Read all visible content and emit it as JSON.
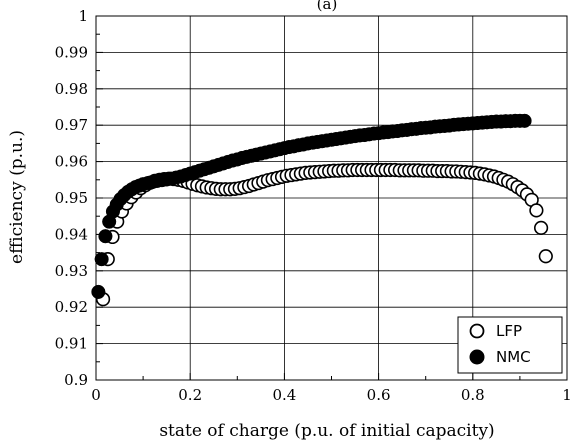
{
  "chart_data": {
    "type": "scatter",
    "title": "",
    "panel_label": "(a)",
    "xlabel": "state of charge (p.u. of initial capacity)",
    "ylabel": "efficiency (p.u.)",
    "xlim": [
      0,
      1
    ],
    "ylim": [
      0.9,
      1
    ],
    "xticks": [
      0,
      0.2,
      0.4,
      0.6,
      0.8,
      1
    ],
    "xtick_labels": [
      "0",
      "0.2",
      "0.4",
      "0.6",
      "0.8",
      "1"
    ],
    "yticks": [
      0.9,
      0.91,
      0.92,
      0.93,
      0.94,
      0.95,
      0.96,
      0.97,
      0.98,
      0.99,
      1
    ],
    "ytick_labels": [
      "0.9",
      "0.91",
      "0.92",
      "0.93",
      "0.94",
      "0.95",
      "0.96",
      "0.97",
      "0.98",
      "0.99",
      "1"
    ],
    "grid": true,
    "legend_position": "bottom-right",
    "series": [
      {
        "name": "LFP",
        "marker": "open-circle",
        "color": "#000000",
        "points": [
          [
            0.015,
            0.9222
          ],
          [
            0.025,
            0.9332
          ],
          [
            0.035,
            0.9393
          ],
          [
            0.045,
            0.9435
          ],
          [
            0.055,
            0.9463
          ],
          [
            0.065,
            0.9485
          ],
          [
            0.075,
            0.9502
          ],
          [
            0.085,
            0.9515
          ],
          [
            0.095,
            0.9527
          ],
          [
            0.105,
            0.9535
          ],
          [
            0.115,
            0.9542
          ],
          [
            0.125,
            0.9547
          ],
          [
            0.135,
            0.955
          ],
          [
            0.145,
            0.9552
          ],
          [
            0.155,
            0.9553
          ],
          [
            0.165,
            0.9552
          ],
          [
            0.175,
            0.955
          ],
          [
            0.185,
            0.9547
          ],
          [
            0.195,
            0.9543
          ],
          [
            0.205,
            0.9539
          ],
          [
            0.215,
            0.9535
          ],
          [
            0.225,
            0.9532
          ],
          [
            0.235,
            0.9529
          ],
          [
            0.245,
            0.9527
          ],
          [
            0.255,
            0.9525
          ],
          [
            0.265,
            0.9524
          ],
          [
            0.275,
            0.9524
          ],
          [
            0.285,
            0.9524
          ],
          [
            0.295,
            0.9525
          ],
          [
            0.305,
            0.9527
          ],
          [
            0.315,
            0.953
          ],
          [
            0.325,
            0.9533
          ],
          [
            0.335,
            0.9537
          ],
          [
            0.345,
            0.9541
          ],
          [
            0.355,
            0.9545
          ],
          [
            0.365,
            0.9549
          ],
          [
            0.375,
            0.9552
          ],
          [
            0.385,
            0.9555
          ],
          [
            0.395,
            0.9558
          ],
          [
            0.405,
            0.9561
          ],
          [
            0.415,
            0.9563
          ],
          [
            0.425,
            0.9565
          ],
          [
            0.435,
            0.9567
          ],
          [
            0.445,
            0.9569
          ],
          [
            0.455,
            0.957
          ],
          [
            0.465,
            0.9571
          ],
          [
            0.475,
            0.9572
          ],
          [
            0.485,
            0.9573
          ],
          [
            0.495,
            0.9574
          ],
          [
            0.505,
            0.9575
          ],
          [
            0.515,
            0.9575
          ],
          [
            0.525,
            0.9576
          ],
          [
            0.535,
            0.9576
          ],
          [
            0.545,
            0.9577
          ],
          [
            0.555,
            0.9577
          ],
          [
            0.565,
            0.9577
          ],
          [
            0.575,
            0.9577
          ],
          [
            0.585,
            0.9577
          ],
          [
            0.595,
            0.9577
          ],
          [
            0.605,
            0.9577
          ],
          [
            0.615,
            0.9577
          ],
          [
            0.625,
            0.9577
          ],
          [
            0.635,
            0.9577
          ],
          [
            0.645,
            0.9576
          ],
          [
            0.655,
            0.9576
          ],
          [
            0.665,
            0.9576
          ],
          [
            0.675,
            0.9576
          ],
          [
            0.685,
            0.9576
          ],
          [
            0.695,
            0.9575
          ],
          [
            0.705,
            0.9575
          ],
          [
            0.715,
            0.9575
          ],
          [
            0.725,
            0.9574
          ],
          [
            0.735,
            0.9574
          ],
          [
            0.745,
            0.9574
          ],
          [
            0.755,
            0.9573
          ],
          [
            0.765,
            0.9573
          ],
          [
            0.775,
            0.9572
          ],
          [
            0.785,
            0.9571
          ],
          [
            0.795,
            0.957
          ],
          [
            0.805,
            0.9569
          ],
          [
            0.815,
            0.9567
          ],
          [
            0.825,
            0.9565
          ],
          [
            0.835,
            0.9562
          ],
          [
            0.845,
            0.9559
          ],
          [
            0.855,
            0.9555
          ],
          [
            0.865,
            0.955
          ],
          [
            0.875,
            0.9545
          ],
          [
            0.885,
            0.9538
          ],
          [
            0.895,
            0.953
          ],
          [
            0.905,
            0.9521
          ],
          [
            0.915,
            0.951
          ],
          [
            0.925,
            0.9495
          ],
          [
            0.935,
            0.9466
          ],
          [
            0.945,
            0.9418
          ],
          [
            0.955,
            0.934
          ]
        ]
      },
      {
        "name": "NMC",
        "marker": "filled-circle",
        "color": "#000000",
        "points": [
          [
            0.005,
            0.9242
          ],
          [
            0.012,
            0.9332
          ],
          [
            0.02,
            0.9395
          ],
          [
            0.028,
            0.9435
          ],
          [
            0.036,
            0.9463
          ],
          [
            0.044,
            0.9482
          ],
          [
            0.052,
            0.9497
          ],
          [
            0.06,
            0.9508
          ],
          [
            0.068,
            0.9517
          ],
          [
            0.076,
            0.9524
          ],
          [
            0.084,
            0.953
          ],
          [
            0.092,
            0.9534
          ],
          [
            0.1,
            0.9538
          ],
          [
            0.11,
            0.9541
          ],
          [
            0.12,
            0.9544
          ],
          [
            0.13,
            0.9547
          ],
          [
            0.14,
            0.9549
          ],
          [
            0.15,
            0.9551
          ],
          [
            0.16,
            0.9553
          ],
          [
            0.17,
            0.9556
          ],
          [
            0.18,
            0.9559
          ],
          [
            0.19,
            0.9563
          ],
          [
            0.2,
            0.9567
          ],
          [
            0.21,
            0.9571
          ],
          [
            0.22,
            0.9575
          ],
          [
            0.23,
            0.9579
          ],
          [
            0.24,
            0.9583
          ],
          [
            0.25,
            0.9587
          ],
          [
            0.26,
            0.9591
          ],
          [
            0.27,
            0.9595
          ],
          [
            0.28,
            0.9599
          ],
          [
            0.29,
            0.9603
          ],
          [
            0.3,
            0.9606
          ],
          [
            0.31,
            0.961
          ],
          [
            0.32,
            0.9613
          ],
          [
            0.33,
            0.9616
          ],
          [
            0.34,
            0.9619
          ],
          [
            0.35,
            0.9622
          ],
          [
            0.36,
            0.9625
          ],
          [
            0.37,
            0.9628
          ],
          [
            0.38,
            0.9631
          ],
          [
            0.39,
            0.9634
          ],
          [
            0.4,
            0.9637
          ],
          [
            0.41,
            0.964
          ],
          [
            0.42,
            0.9642
          ],
          [
            0.43,
            0.9645
          ],
          [
            0.44,
            0.9647
          ],
          [
            0.45,
            0.965
          ],
          [
            0.46,
            0.9652
          ],
          [
            0.47,
            0.9654
          ],
          [
            0.48,
            0.9656
          ],
          [
            0.49,
            0.9658
          ],
          [
            0.5,
            0.966
          ],
          [
            0.51,
            0.9662
          ],
          [
            0.52,
            0.9664
          ],
          [
            0.53,
            0.9666
          ],
          [
            0.54,
            0.9668
          ],
          [
            0.55,
            0.967
          ],
          [
            0.56,
            0.9672
          ],
          [
            0.57,
            0.9673
          ],
          [
            0.58,
            0.9675
          ],
          [
            0.59,
            0.9677
          ],
          [
            0.6,
            0.9678
          ],
          [
            0.61,
            0.968
          ],
          [
            0.62,
            0.9681
          ],
          [
            0.63,
            0.9683
          ],
          [
            0.64,
            0.9684
          ],
          [
            0.65,
            0.9686
          ],
          [
            0.66,
            0.9687
          ],
          [
            0.67,
            0.9689
          ],
          [
            0.68,
            0.969
          ],
          [
            0.69,
            0.9692
          ],
          [
            0.7,
            0.9693
          ],
          [
            0.71,
            0.9694
          ],
          [
            0.72,
            0.9696
          ],
          [
            0.73,
            0.9697
          ],
          [
            0.74,
            0.9698
          ],
          [
            0.75,
            0.9699
          ],
          [
            0.76,
            0.9701
          ],
          [
            0.77,
            0.9702
          ],
          [
            0.78,
            0.9703
          ],
          [
            0.79,
            0.9704
          ],
          [
            0.8,
            0.9705
          ],
          [
            0.81,
            0.9706
          ],
          [
            0.82,
            0.9707
          ],
          [
            0.83,
            0.9708
          ],
          [
            0.84,
            0.9709
          ],
          [
            0.85,
            0.971
          ],
          [
            0.86,
            0.971
          ],
          [
            0.87,
            0.9711
          ],
          [
            0.88,
            0.9711
          ],
          [
            0.89,
            0.9712
          ],
          [
            0.9,
            0.9712
          ],
          [
            0.91,
            0.9712
          ]
        ]
      }
    ]
  }
}
